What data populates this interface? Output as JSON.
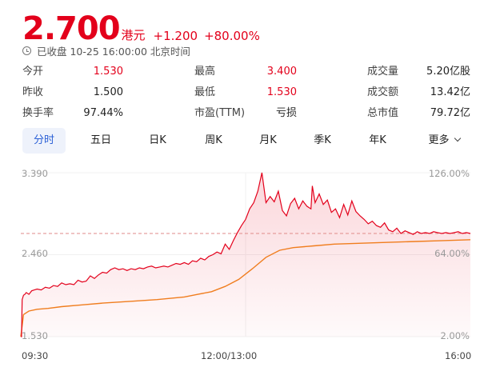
{
  "quote": {
    "price": "2.700",
    "currency": "港元",
    "change": "+1.200",
    "change_pct": "+80.00%",
    "status": "已收盘 10-25 16:00:00 北京时间"
  },
  "stats": [
    {
      "label": "今开",
      "value": "1.530"
    },
    {
      "label": "昨收",
      "value": "1.500"
    },
    {
      "label": "换手率",
      "value": "97.44%"
    },
    {
      "label": "最高",
      "value": "3.400"
    },
    {
      "label": "最低",
      "value": "1.530"
    },
    {
      "label": "市盈(TTM)",
      "value": "亏损"
    },
    {
      "label": "成交量",
      "value": "5.20亿股"
    },
    {
      "label": "成交额",
      "value": "13.42亿"
    },
    {
      "label": "总市值",
      "value": "79.72亿"
    }
  ],
  "tabs": [
    "分时",
    "五日",
    "日K",
    "周K",
    "月K",
    "季K",
    "年K",
    "更多"
  ],
  "active_tab": "分时",
  "colors": {
    "up": "#e3001b",
    "avg_line": "#f07d1e",
    "accent": "#2b60d6"
  },
  "chart_data": {
    "type": "line",
    "y_left_ticks": [
      "3.390",
      "2.460",
      "1.530"
    ],
    "y_right_ticks": [
      "126.00%",
      "64.00%",
      "2.00%"
    ],
    "x_ticks": [
      "09:30",
      "12:00/13:00",
      "16:00"
    ],
    "ylim": [
      1.53,
      3.39
    ],
    "prev_close": 1.5,
    "series": [
      {
        "x": [
          0,
          0.5,
          1,
          2,
          3,
          4,
          6,
          8,
          10,
          12,
          15,
          18,
          21,
          24,
          27,
          30,
          33,
          36,
          39,
          42,
          45,
          48,
          51,
          54,
          57,
          60,
          63,
          66,
          69,
          72,
          75,
          78,
          81,
          84,
          87,
          90,
          93,
          96,
          99,
          102,
          105,
          108,
          111,
          114,
          117,
          120,
          123,
          126,
          129,
          132,
          135,
          138,
          141,
          144,
          147,
          150,
          153,
          156,
          159,
          162,
          165,
          168,
          171,
          174,
          177,
          180,
          183,
          186,
          189,
          192,
          195,
          198,
          201,
          204,
          207,
          210,
          213,
          214,
          216,
          219,
          222,
          225,
          228,
          231,
          234,
          237,
          240,
          243,
          246,
          249,
          252,
          255,
          258,
          261,
          264,
          267,
          270,
          273,
          276,
          279,
          282,
          285,
          288,
          291,
          294,
          297,
          300,
          303,
          306,
          309,
          312,
          315,
          318,
          321,
          324,
          327,
          330
        ],
        "values": [
          1.53,
          1.53,
          1.95,
          2.0,
          2.01,
          2.03,
          2.01,
          2.05,
          2.06,
          2.07,
          2.06,
          2.09,
          2.08,
          2.11,
          2.1,
          2.14,
          2.12,
          2.13,
          2.12,
          2.17,
          2.15,
          2.16,
          2.22,
          2.19,
          2.23,
          2.26,
          2.25,
          2.29,
          2.31,
          2.29,
          2.3,
          2.28,
          2.3,
          2.29,
          2.31,
          2.3,
          2.32,
          2.33,
          2.31,
          2.32,
          2.33,
          2.32,
          2.34,
          2.36,
          2.35,
          2.37,
          2.35,
          2.39,
          2.38,
          2.42,
          2.4,
          2.44,
          2.46,
          2.49,
          2.47,
          2.58,
          2.52,
          2.62,
          2.71,
          2.79,
          2.86,
          2.98,
          3.05,
          3.18,
          3.39,
          3.05,
          3.12,
          3.06,
          3.18,
          2.96,
          2.9,
          3.04,
          3.1,
          2.98,
          3.07,
          3.01,
          2.98,
          3.24,
          3.05,
          3.15,
          3.03,
          3.08,
          2.94,
          2.98,
          2.88,
          3.03,
          2.91,
          3.07,
          2.95,
          2.9,
          2.86,
          2.81,
          2.84,
          2.79,
          2.77,
          2.82,
          2.74,
          2.72,
          2.76,
          2.7,
          2.73,
          2.71,
          2.69,
          2.72,
          2.7,
          2.71,
          2.7,
          2.72,
          2.71,
          2.7,
          2.71,
          2.7,
          2.71,
          2.72,
          2.7,
          2.71,
          2.7
        ],
        "name": ""
      },
      {
        "x": [
          0,
          2,
          6,
          12,
          20,
          30,
          45,
          60,
          80,
          100,
          120,
          130,
          140,
          150,
          160,
          170,
          180,
          190,
          200,
          215,
          230,
          250,
          270,
          290,
          310,
          330
        ],
        "values": [
          1.53,
          1.78,
          1.82,
          1.84,
          1.85,
          1.87,
          1.89,
          1.91,
          1.93,
          1.95,
          1.98,
          2.01,
          2.04,
          2.1,
          2.18,
          2.3,
          2.43,
          2.51,
          2.54,
          2.56,
          2.58,
          2.59,
          2.6,
          2.61,
          2.62,
          2.63
        ],
        "name": ""
      }
    ]
  }
}
